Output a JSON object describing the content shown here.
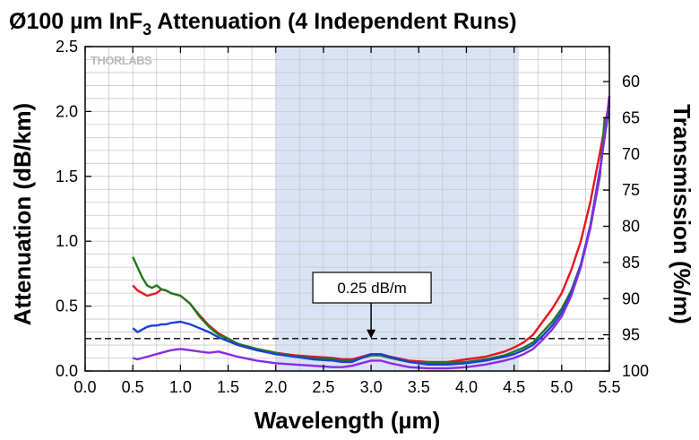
{
  "chart_data": {
    "type": "line",
    "title_main": "Ø100 µm InF",
    "title_sub": "3",
    "title_rest": " Attenuation (4 Independent Runs)",
    "xlabel": "Wavelength (µm)",
    "ylabel": "Attenuation (dB/km)",
    "y2label": "Transmission (%/m)",
    "xlim": [
      0.0,
      5.5
    ],
    "ylim": [
      0.0,
      2.5
    ],
    "x_ticks": [
      "0.0",
      "0.5",
      "1.0",
      "1.5",
      "2.0",
      "2.5",
      "3.0",
      "3.5",
      "4.0",
      "4.5",
      "5.0",
      "5.5"
    ],
    "y_ticks": [
      "0.0",
      "0.5",
      "1.0",
      "1.5",
      "2.0",
      "2.5"
    ],
    "y2_ticks": [
      "60",
      "65",
      "70",
      "75",
      "80",
      "85",
      "90",
      "95",
      "100"
    ],
    "grid": true,
    "shaded_region": {
      "x": [
        2.0,
        4.55
      ],
      "color": "#d9e3f5"
    },
    "reference_line": {
      "y": 0.25,
      "style": "dashed",
      "color": "#000000"
    },
    "annotation": {
      "text": "0.25 dB/m",
      "points_to": [
        3.0,
        0.25
      ]
    },
    "watermark": "THORLABS",
    "series": [
      {
        "color": "#e8141d",
        "x": [
          0.5,
          0.55,
          0.6,
          0.65,
          0.7,
          0.75,
          0.8,
          0.85,
          0.9,
          1.0,
          1.1,
          1.2,
          1.3,
          1.4,
          1.5,
          1.6,
          1.8,
          2.0,
          2.2,
          2.4,
          2.6,
          2.7,
          2.8,
          2.9,
          3.0,
          3.1,
          3.2,
          3.4,
          3.6,
          3.8,
          4.0,
          4.2,
          4.4,
          4.5,
          4.6,
          4.7,
          4.8,
          4.9,
          5.0,
          5.1,
          5.2,
          5.3,
          5.4,
          5.5
        ],
        "values": [
          0.66,
          0.62,
          0.6,
          0.58,
          0.59,
          0.6,
          0.63,
          0.62,
          0.6,
          0.58,
          0.52,
          0.43,
          0.35,
          0.29,
          0.25,
          0.21,
          0.17,
          0.14,
          0.12,
          0.11,
          0.1,
          0.09,
          0.09,
          0.11,
          0.13,
          0.13,
          0.11,
          0.08,
          0.07,
          0.07,
          0.09,
          0.11,
          0.15,
          0.18,
          0.22,
          0.28,
          0.38,
          0.48,
          0.6,
          0.78,
          1.0,
          1.3,
          1.68,
          2.08
        ]
      },
      {
        "color": "#1f7a1f",
        "x": [
          0.5,
          0.55,
          0.6,
          0.65,
          0.7,
          0.75,
          0.8,
          0.85,
          0.9,
          1.0,
          1.1,
          1.2,
          1.3,
          1.4,
          1.5,
          1.6,
          1.8,
          2.0,
          2.2,
          2.4,
          2.6,
          2.7,
          2.8,
          2.9,
          3.0,
          3.1,
          3.2,
          3.4,
          3.6,
          3.8,
          4.0,
          4.2,
          4.4,
          4.5,
          4.6,
          4.7,
          4.8,
          4.9,
          5.0,
          5.1,
          5.2,
          5.3,
          5.4,
          5.45
        ],
        "values": [
          0.88,
          0.8,
          0.72,
          0.66,
          0.64,
          0.66,
          0.63,
          0.62,
          0.6,
          0.58,
          0.52,
          0.42,
          0.34,
          0.28,
          0.25,
          0.21,
          0.17,
          0.14,
          0.11,
          0.1,
          0.09,
          0.08,
          0.08,
          0.1,
          0.12,
          0.12,
          0.1,
          0.07,
          0.06,
          0.06,
          0.07,
          0.09,
          0.12,
          0.15,
          0.18,
          0.22,
          0.3,
          0.38,
          0.48,
          0.62,
          0.82,
          1.1,
          1.5,
          1.95
        ]
      },
      {
        "color": "#1f3fd4",
        "x": [
          0.5,
          0.55,
          0.6,
          0.65,
          0.7,
          0.75,
          0.8,
          0.85,
          0.9,
          1.0,
          1.1,
          1.2,
          1.3,
          1.4,
          1.5,
          1.6,
          1.8,
          2.0,
          2.2,
          2.4,
          2.6,
          2.7,
          2.8,
          2.9,
          3.0,
          3.1,
          3.2,
          3.4,
          3.6,
          3.8,
          4.0,
          4.2,
          4.4,
          4.5,
          4.6,
          4.7,
          4.8,
          4.9,
          5.0,
          5.1,
          5.2,
          5.3,
          5.4,
          5.5
        ],
        "values": [
          0.33,
          0.3,
          0.32,
          0.34,
          0.35,
          0.35,
          0.36,
          0.36,
          0.37,
          0.38,
          0.36,
          0.33,
          0.3,
          0.26,
          0.23,
          0.2,
          0.16,
          0.13,
          0.11,
          0.09,
          0.08,
          0.07,
          0.07,
          0.1,
          0.13,
          0.13,
          0.11,
          0.07,
          0.05,
          0.05,
          0.06,
          0.08,
          0.11,
          0.13,
          0.16,
          0.2,
          0.27,
          0.35,
          0.45,
          0.6,
          0.82,
          1.12,
          1.55,
          2.05
        ]
      },
      {
        "color": "#8a2be2",
        "x": [
          0.5,
          0.55,
          0.6,
          0.65,
          0.7,
          0.8,
          0.9,
          1.0,
          1.1,
          1.2,
          1.3,
          1.4,
          1.5,
          1.6,
          1.8,
          2.0,
          2.2,
          2.4,
          2.6,
          2.7,
          2.8,
          2.9,
          3.0,
          3.1,
          3.2,
          3.4,
          3.6,
          3.8,
          4.0,
          4.2,
          4.4,
          4.5,
          4.6,
          4.7,
          4.8,
          4.9,
          5.0,
          5.1,
          5.2,
          5.3,
          5.4,
          5.5
        ],
        "values": [
          0.1,
          0.09,
          0.1,
          0.11,
          0.12,
          0.14,
          0.16,
          0.17,
          0.16,
          0.15,
          0.14,
          0.15,
          0.13,
          0.11,
          0.08,
          0.06,
          0.05,
          0.04,
          0.03,
          0.03,
          0.04,
          0.06,
          0.08,
          0.08,
          0.06,
          0.03,
          0.02,
          0.02,
          0.03,
          0.05,
          0.08,
          0.1,
          0.13,
          0.17,
          0.24,
          0.32,
          0.42,
          0.58,
          0.8,
          1.1,
          1.52,
          2.12
        ]
      }
    ]
  }
}
